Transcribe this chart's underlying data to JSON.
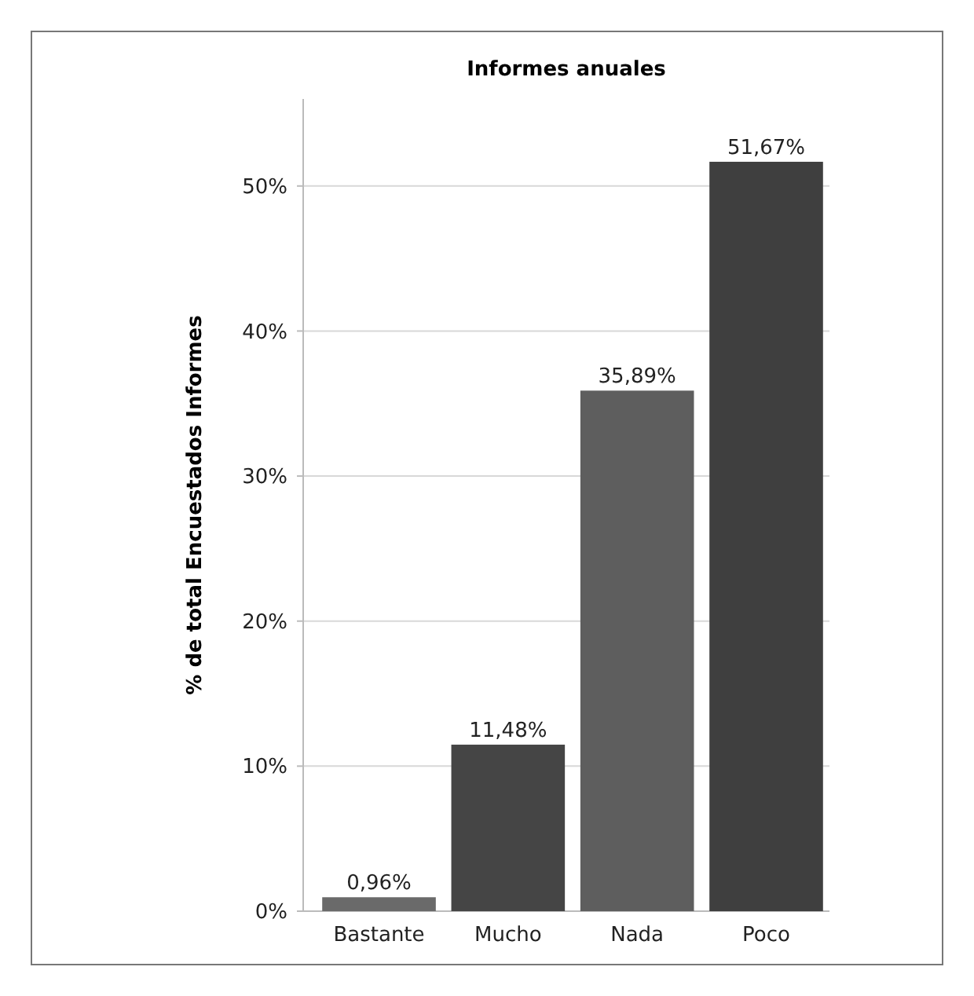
{
  "chart_data": {
    "type": "bar",
    "title": "Informes anuales",
    "ylabel": "% de total Encuestados Informes",
    "categories": [
      "Bastante",
      "Mucho",
      "Nada",
      "Poco"
    ],
    "values": [
      0.96,
      11.48,
      35.89,
      51.67
    ],
    "colors": [
      "#6a6a6a",
      "#454545",
      "#5e5e5e",
      "#3f3f3f"
    ],
    "value_labels": [
      "0,96%",
      "11,48%",
      "35,89%",
      "51,67%"
    ],
    "ylim": [
      0,
      56
    ],
    "yticks": [
      {
        "value": 0,
        "label": "0%"
      },
      {
        "value": 10,
        "label": "10%"
      },
      {
        "value": 20,
        "label": "20%"
      },
      {
        "value": 30,
        "label": "30%"
      },
      {
        "value": 40,
        "label": "40%"
      },
      {
        "value": 50,
        "label": "50%"
      }
    ],
    "grid": "y"
  }
}
